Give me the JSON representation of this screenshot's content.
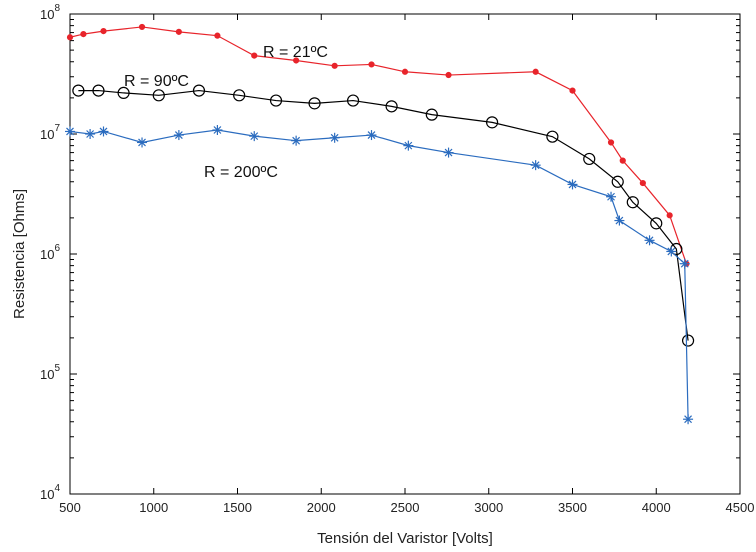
{
  "chart_data": {
    "type": "line",
    "title": "",
    "xlabel": "Tensión del Varistor [Volts]",
    "ylabel": "Resistencia [Ohms]",
    "xlim": [
      500,
      4500
    ],
    "ylim": [
      10000,
      100000000
    ],
    "yscale": "log",
    "grid": false,
    "x_ticks": [
      "500",
      "1000",
      "1500",
      "2000",
      "2500",
      "3000",
      "3500",
      "4000",
      "4500"
    ],
    "y_ticks": [
      {
        "base": "10",
        "exp": "4",
        "value": 10000
      },
      {
        "base": "10",
        "exp": "5",
        "value": 100000
      },
      {
        "base": "10",
        "exp": "6",
        "value": 1000000
      },
      {
        "base": "10",
        "exp": "7",
        "value": 10000000
      },
      {
        "base": "10",
        "exp": "8",
        "value": 100000000
      }
    ],
    "annotations": [
      {
        "text": "R = 21ºC",
        "series": 0
      },
      {
        "text": "R = 90ºC",
        "series": 1
      },
      {
        "text": "R = 200ºC",
        "series": 2
      }
    ],
    "series": [
      {
        "color": "#e8242b",
        "marker": "dot",
        "x": [
          500,
          580,
          700,
          930,
          1150,
          1380,
          1600,
          1850,
          2080,
          2300,
          2500,
          2760,
          3280,
          3500,
          3730,
          3800,
          3920,
          4080,
          4180
        ],
        "y": [
          64000000,
          68000000,
          72000000,
          78000000,
          71000000,
          66000000,
          45000000,
          41000000,
          37000000,
          38000000,
          33000000,
          31000000,
          33000000,
          23000000,
          8500000,
          6000000,
          3900000,
          2100000,
          830000
        ]
      },
      {
        "color": "#000000",
        "marker": "circle",
        "x": [
          550,
          670,
          820,
          1030,
          1270,
          1510,
          1730,
          1960,
          2190,
          2420,
          2660,
          3020,
          3380,
          3600,
          3770,
          3860,
          4000,
          4120,
          4190
        ],
        "y": [
          23000000,
          23000000,
          22000000,
          21000000,
          23000000,
          21000000,
          19000000,
          18000000,
          19000000,
          17000000,
          14500000,
          12500000,
          9500000,
          6200000,
          4000000,
          2700000,
          1800000,
          1100000,
          190000
        ]
      },
      {
        "color": "#2b6cbf",
        "marker": "star",
        "x": [
          500,
          620,
          700,
          930,
          1150,
          1380,
          1600,
          1850,
          2080,
          2300,
          2520,
          2760,
          3280,
          3500,
          3730,
          3780,
          3960,
          4090,
          4170,
          4190
        ],
        "y": [
          10500000,
          10000000,
          10500000,
          8500000,
          9800000,
          10800000,
          9600000,
          8800000,
          9300000,
          9800000,
          8000000,
          7000000,
          5500000,
          3800000,
          3000000,
          1900000,
          1300000,
          1050000,
          830000,
          42000
        ]
      }
    ]
  }
}
